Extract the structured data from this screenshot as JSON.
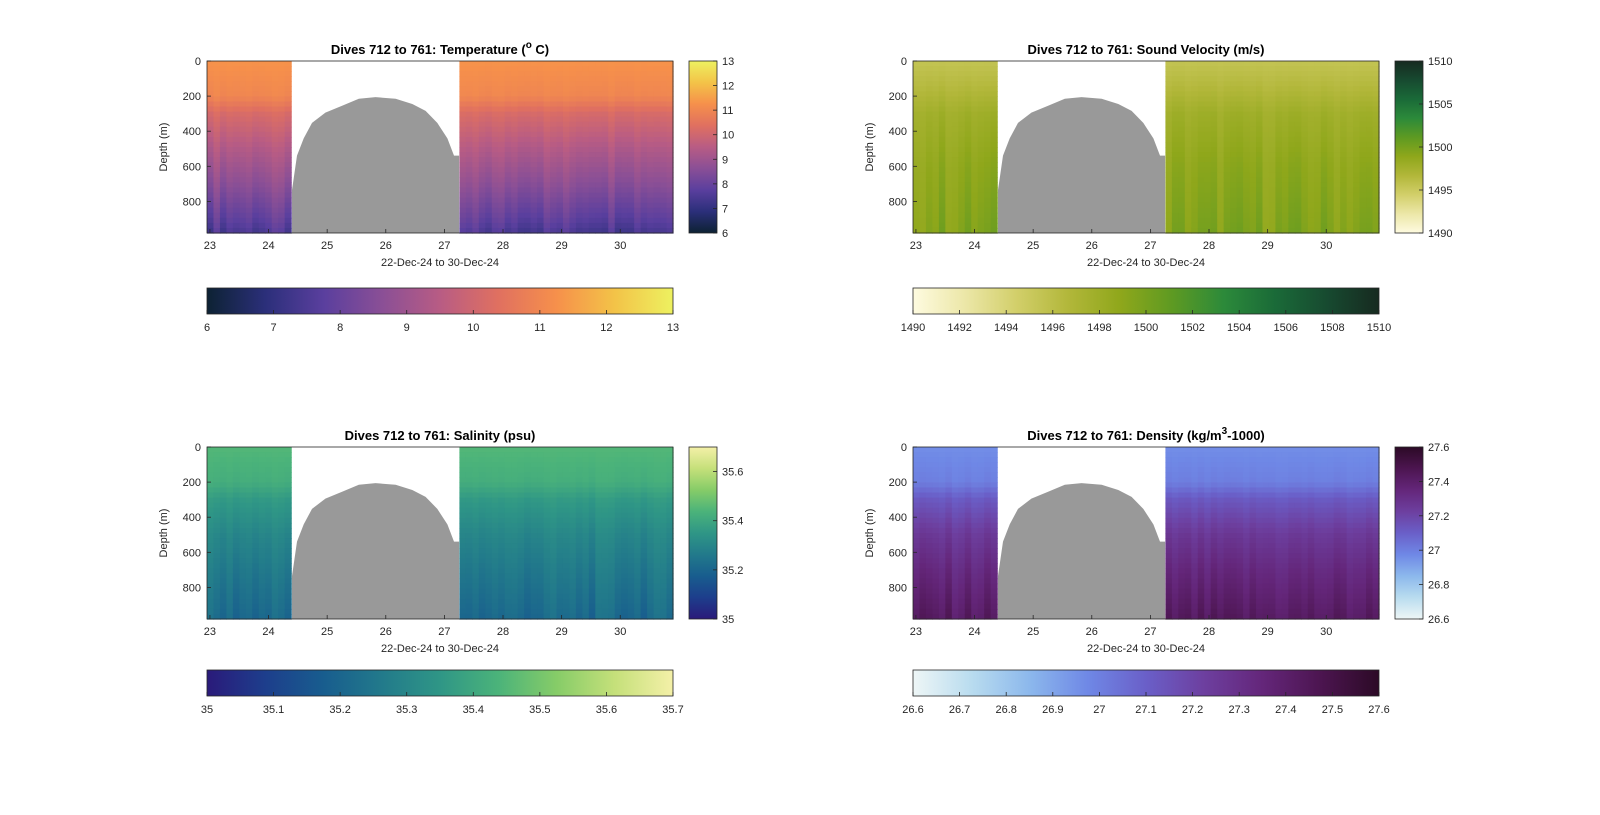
{
  "chart_data": [
    {
      "type": "heatmap",
      "title_prefix": "Dives 712 to 761: Temperature (",
      "title_sup": "o",
      "title_suffix": " C)",
      "xlabel": "22-Dec-24 to 30-Dec-24",
      "ylabel": "Depth (m)",
      "xlim": [
        22.95,
        30.9
      ],
      "ylim": [
        0,
        980
      ],
      "xticks": [
        23,
        24,
        25,
        26,
        27,
        28,
        29,
        30
      ],
      "yticks": [
        0,
        200,
        400,
        600,
        800
      ],
      "clim": [
        6,
        13
      ],
      "colorbar_ticks": [
        6,
        7,
        8,
        9,
        10,
        11,
        12,
        13
      ],
      "hcolorbar_ticks": [
        6,
        7,
        8,
        9,
        10,
        11,
        12,
        13
      ],
      "colormap": [
        "#0d2233",
        "#2b2f7a",
        "#5a3f9e",
        "#8a4f96",
        "#b85c84",
        "#e07060",
        "#f6904b",
        "#f3c348",
        "#edf160"
      ],
      "profile": [
        {
          "depth": 0,
          "value": 11.3
        },
        {
          "depth": 200,
          "value": 11.0
        },
        {
          "depth": 300,
          "value": 10.2
        },
        {
          "depth": 500,
          "value": 9.4
        },
        {
          "depth": 700,
          "value": 8.7
        },
        {
          "depth": 900,
          "value": 7.9
        },
        {
          "depth": 980,
          "value": 7.5
        }
      ],
      "gap": {
        "start": 24.4,
        "end": 27.25
      }
    },
    {
      "type": "heatmap",
      "title_prefix": "Dives 712 to 761: Sound Velocity (m/s)",
      "title_sup": "",
      "title_suffix": "",
      "xlabel": "22-Dec-24 to 30-Dec-24",
      "ylabel": "Depth (m)",
      "xlim": [
        22.95,
        30.9
      ],
      "ylim": [
        0,
        980
      ],
      "xticks": [
        23,
        24,
        25,
        26,
        27,
        28,
        29,
        30
      ],
      "yticks": [
        0,
        200,
        400,
        600,
        800
      ],
      "clim": [
        1490,
        1510
      ],
      "colorbar_ticks": [
        1490,
        1495,
        1500,
        1505,
        1510
      ],
      "hcolorbar_ticks": [
        1490,
        1492,
        1494,
        1496,
        1498,
        1500,
        1502,
        1504,
        1506,
        1508,
        1510
      ],
      "colormap": [
        "#fefbe0",
        "#ece7a8",
        "#d2cf6a",
        "#b2b73a",
        "#8fa71b",
        "#5e9a22",
        "#2c8a3a",
        "#1a6a38",
        "#174a30",
        "#172a20"
      ],
      "profile": [
        {
          "depth": 0,
          "value": 1495.5
        },
        {
          "depth": 150,
          "value": 1496.5
        },
        {
          "depth": 300,
          "value": 1497.8
        },
        {
          "depth": 600,
          "value": 1498.8
        },
        {
          "depth": 980,
          "value": 1499.5
        }
      ],
      "gap": {
        "start": 24.4,
        "end": 27.25
      }
    },
    {
      "type": "heatmap",
      "title_prefix": "Dives 712 to 761: Salinity (psu)",
      "title_sup": "",
      "title_suffix": "",
      "xlabel": "22-Dec-24 to 30-Dec-24",
      "ylabel": "Depth (m)",
      "xlim": [
        22.95,
        30.9
      ],
      "ylim": [
        0,
        980
      ],
      "xticks": [
        23,
        24,
        25,
        26,
        27,
        28,
        29,
        30
      ],
      "yticks": [
        0,
        200,
        400,
        600,
        800
      ],
      "clim": [
        35,
        35.7
      ],
      "colorbar_ticks": [
        35,
        35.2,
        35.4,
        35.6
      ],
      "hcolorbar_ticks": [
        35,
        35.1,
        35.2,
        35.3,
        35.4,
        35.5,
        35.6,
        35.7
      ],
      "colormap": [
        "#2a1a7a",
        "#1d3e8c",
        "#185d8e",
        "#227a8b",
        "#2f9686",
        "#4bb37a",
        "#86cc68",
        "#c5e07a",
        "#f4f0a8"
      ],
      "profile": [
        {
          "depth": 0,
          "value": 35.45
        },
        {
          "depth": 200,
          "value": 35.42
        },
        {
          "depth": 300,
          "value": 35.36
        },
        {
          "depth": 500,
          "value": 35.3
        },
        {
          "depth": 700,
          "value": 35.26
        },
        {
          "depth": 980,
          "value": 35.21
        }
      ],
      "gap": {
        "start": 24.4,
        "end": 27.25
      }
    },
    {
      "type": "heatmap",
      "title_prefix": "Dives 712 to 761: Density (kg/m",
      "title_sup": "3",
      "title_suffix": "-1000)",
      "xlabel": "22-Dec-24 to 30-Dec-24",
      "ylabel": "Depth (m)",
      "xlim": [
        22.95,
        30.9
      ],
      "ylim": [
        0,
        980
      ],
      "xticks": [
        23,
        24,
        25,
        26,
        27,
        28,
        29,
        30
      ],
      "yticks": [
        0,
        200,
        400,
        600,
        800
      ],
      "clim": [
        26.6,
        27.6
      ],
      "colorbar_ticks": [
        26.6,
        26.8,
        27,
        27.2,
        27.4,
        27.6
      ],
      "hcolorbar_ticks": [
        26.6,
        26.7,
        26.8,
        26.9,
        27,
        27.1,
        27.2,
        27.3,
        27.4,
        27.5,
        27.6
      ],
      "colormap": [
        "#eef6f6",
        "#b9dcef",
        "#8cb8ec",
        "#6f88e6",
        "#6a5fc8",
        "#6d3f9f",
        "#64267a",
        "#4c1550",
        "#2c0a26"
      ],
      "profile": [
        {
          "depth": 0,
          "value": 26.96
        },
        {
          "depth": 200,
          "value": 27.0
        },
        {
          "depth": 300,
          "value": 27.12
        },
        {
          "depth": 500,
          "value": 27.25
        },
        {
          "depth": 700,
          "value": 27.33
        },
        {
          "depth": 980,
          "value": 27.42
        }
      ],
      "gap": {
        "start": 24.4,
        "end": 27.25
      }
    }
  ],
  "colors": {
    "no_data": "#999999",
    "axis": "#262626"
  }
}
